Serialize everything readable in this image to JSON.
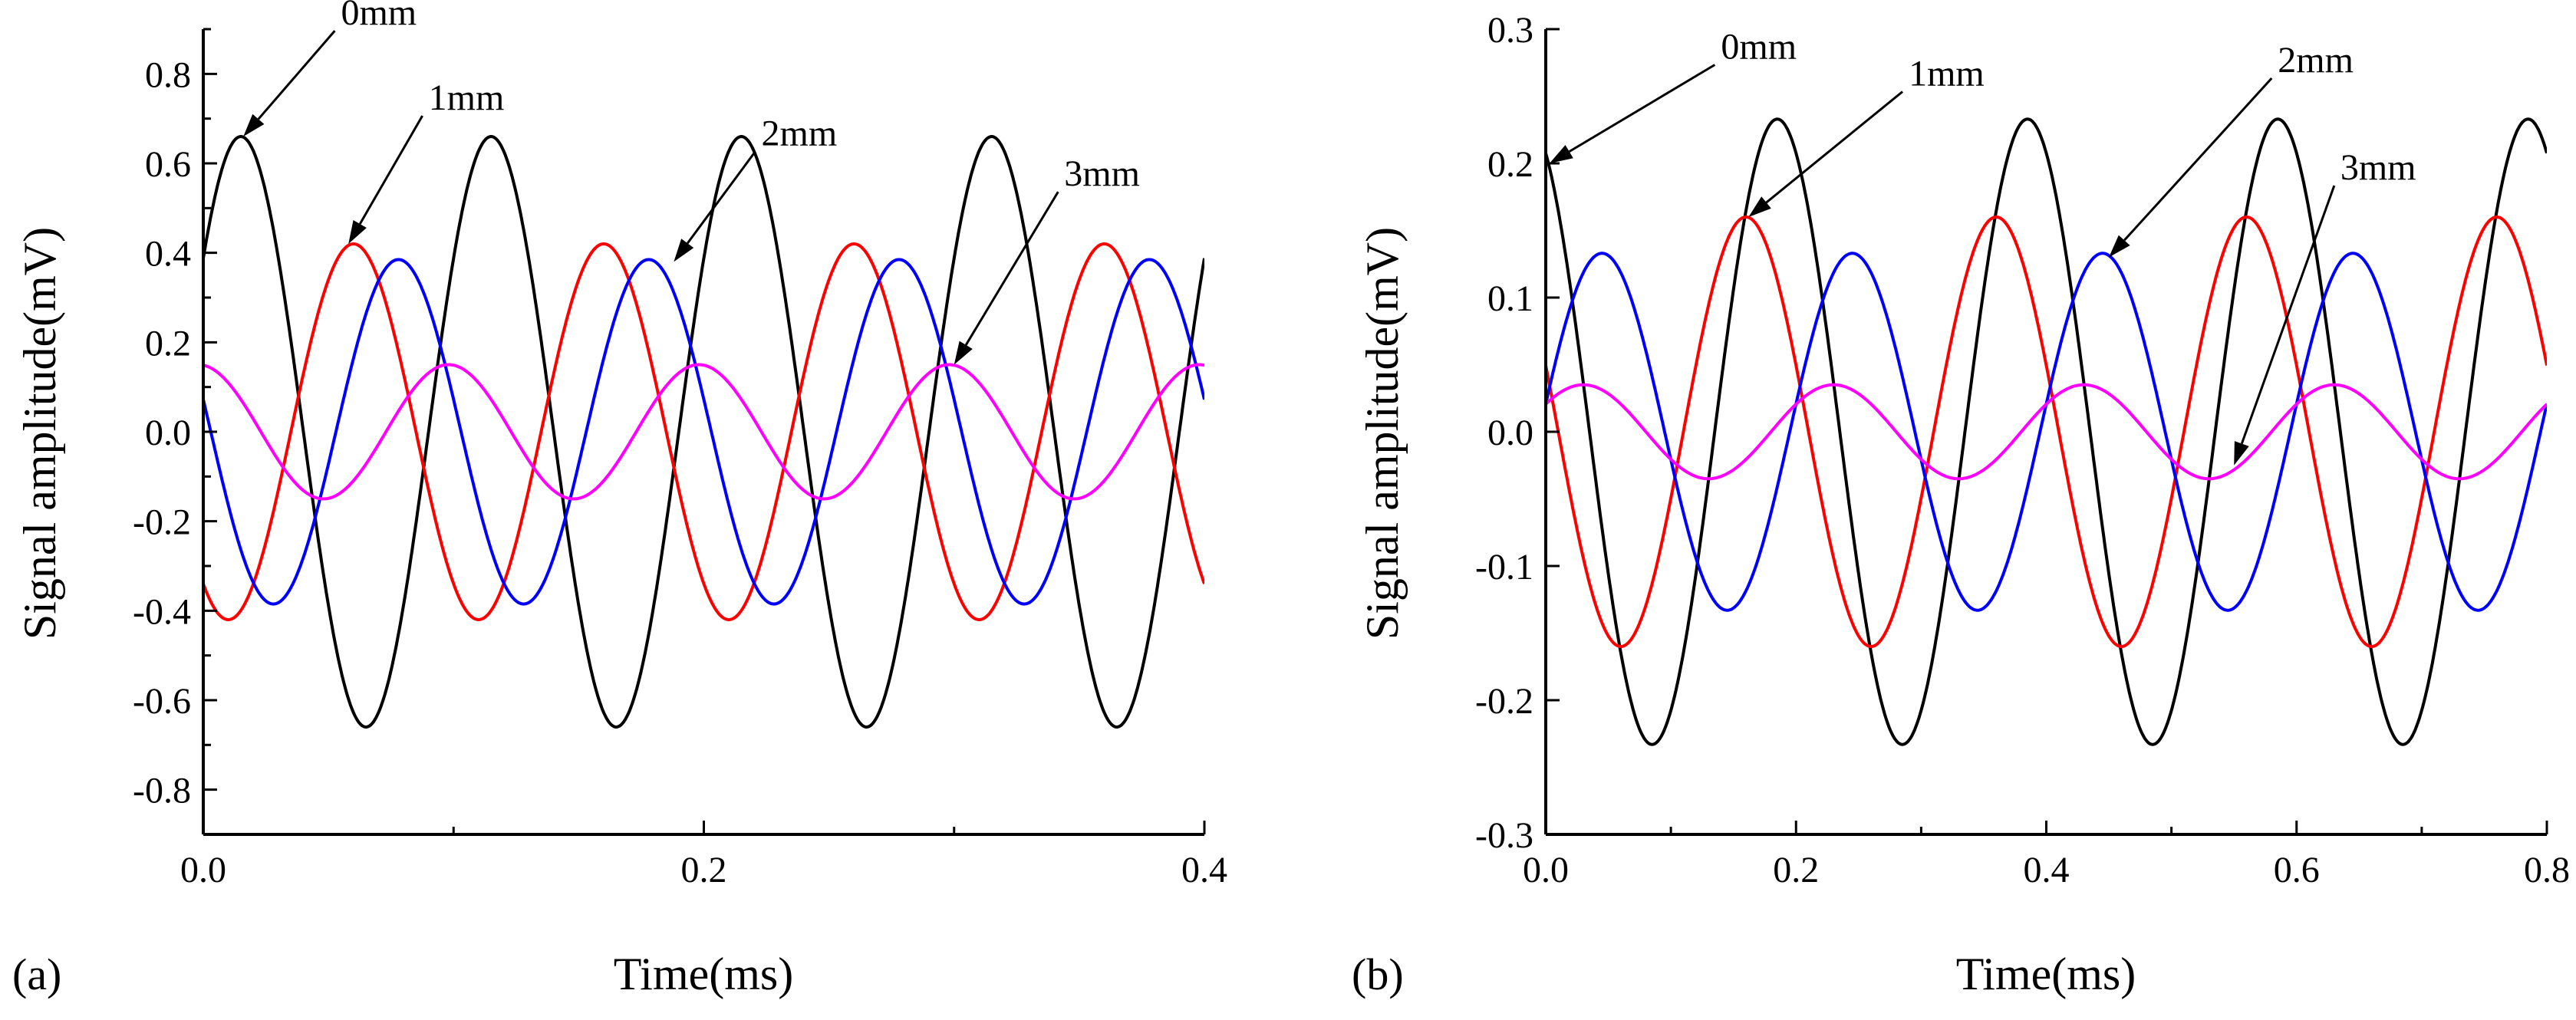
{
  "chart_data": [
    {
      "type": "line",
      "panel_label": "(a)",
      "xlabel": "Time(ms)",
      "ylabel": "Signal amplitude(mV)",
      "xlim": [
        0,
        0.4
      ],
      "ylim": [
        -0.9,
        0.9
      ],
      "xticks": [
        0.0,
        0.2,
        0.4
      ],
      "xtick_labels": [
        "0.0",
        "0.2",
        "0.4"
      ],
      "yticks": [
        -0.8,
        -0.6,
        -0.4,
        -0.2,
        0.0,
        0.2,
        0.4,
        0.6,
        0.8
      ],
      "ytick_labels": [
        "-0.8",
        "-0.6",
        "-0.4",
        "-0.2",
        "0.0",
        "0.2",
        "0.4",
        "0.6",
        "0.8"
      ],
      "grid": false,
      "series": [
        {
          "name": "0mm",
          "color": "#000000",
          "amplitude": 0.66,
          "period_ms": 0.1,
          "first_peak_ms": 0.015
        },
        {
          "name": "1mm",
          "color": "#ff0000",
          "amplitude": 0.42,
          "period_ms": 0.1,
          "first_peak_ms": 0.06
        },
        {
          "name": "2mm",
          "color": "#0000ff",
          "amplitude": 0.385,
          "period_ms": 0.1,
          "first_peak_ms": 0.078
        },
        {
          "name": "3mm",
          "color": "#ff00ff",
          "amplitude": 0.15,
          "period_ms": 0.1,
          "first_peak_ms": 0.098
        }
      ],
      "annotations": [
        {
          "text": "0mm",
          "target": [
            0.016,
            0.66
          ],
          "label_at": [
            0.055,
            0.91
          ]
        },
        {
          "text": "1mm",
          "target": [
            0.058,
            0.42
          ],
          "label_at": [
            0.09,
            0.72
          ]
        },
        {
          "text": "2mm",
          "target": [
            0.188,
            0.38
          ],
          "label_at": [
            0.223,
            0.64
          ]
        },
        {
          "text": "3mm",
          "target": [
            0.3,
            0.15
          ],
          "label_at": [
            0.344,
            0.55
          ]
        }
      ]
    },
    {
      "type": "line",
      "panel_label": "(b)",
      "xlabel": "Time(ms)",
      "ylabel": "Signal amplitude(mV)",
      "xlim": [
        0,
        0.8
      ],
      "ylim": [
        -0.3,
        0.3
      ],
      "xticks": [
        0.0,
        0.2,
        0.4,
        0.6,
        0.8
      ],
      "xtick_labels": [
        "0.0",
        "0.2",
        "0.4",
        "0.6",
        "0.8"
      ],
      "yticks": [
        -0.3,
        -0.2,
        -0.1,
        0.0,
        0.1,
        0.2,
        0.3
      ],
      "ytick_labels": [
        "-0.3",
        "-0.2",
        "-0.1",
        "0.0",
        "0.1",
        "0.2",
        "0.3"
      ],
      "grid": false,
      "series": [
        {
          "name": "0mm",
          "color": "#000000",
          "amplitude": 0.233,
          "period_ms": 0.2,
          "first_peak_ms": 0.185
        },
        {
          "name": "1mm",
          "color": "#ff0000",
          "amplitude": 0.16,
          "period_ms": 0.2,
          "first_peak_ms": 0.16
        },
        {
          "name": "2mm",
          "color": "#0000ff",
          "amplitude": 0.133,
          "period_ms": 0.2,
          "first_peak_ms": 0.045
        },
        {
          "name": "3mm",
          "color": "#ff00ff",
          "amplitude": 0.035,
          "period_ms": 0.2,
          "first_peak_ms": 0.03
        }
      ],
      "annotations": [
        {
          "text": "0mm",
          "target": [
            0.003,
            0.2
          ],
          "label_at": [
            0.14,
            0.278
          ]
        },
        {
          "text": "1mm",
          "target": [
            0.162,
            0.16
          ],
          "label_at": [
            0.29,
            0.258
          ]
        },
        {
          "text": "2mm",
          "target": [
            0.45,
            0.13
          ],
          "label_at": [
            0.585,
            0.268
          ]
        },
        {
          "text": "3mm",
          "target": [
            0.55,
            -0.025
          ],
          "label_at": [
            0.635,
            0.188
          ]
        }
      ]
    }
  ]
}
